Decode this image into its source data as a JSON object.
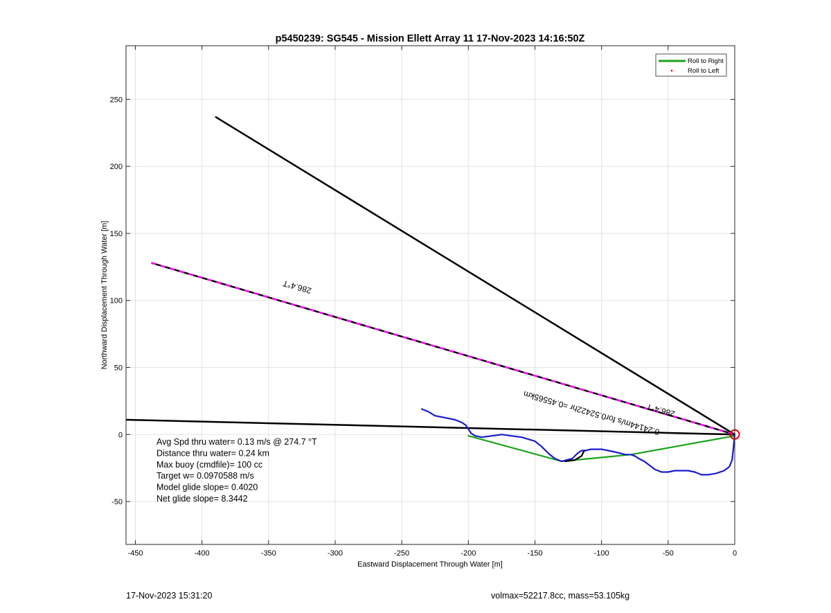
{
  "chart_data": {
    "type": "line",
    "title": "p5450239: SG545 - Mission Ellett Array 11 17-Nov-2023 14:16:50Z",
    "xlabel": "Eastward Displacement Through Water [m]",
    "ylabel": "Northward Displacement Through Water [m]",
    "xlim": [
      -457,
      0
    ],
    "ylim": [
      -82,
      290
    ],
    "xticks": [
      -450,
      -400,
      -350,
      -300,
      -250,
      -200,
      -150,
      -100,
      -50,
      0
    ],
    "yticks": [
      -50,
      0,
      50,
      100,
      150,
      200,
      250
    ],
    "grid": true,
    "legend_position": "top-right",
    "legend": [
      {
        "label": "Roll to Right",
        "color": "#1aa31a",
        "style": "line"
      },
      {
        "label": "Roll to Left",
        "color": "#ff0000",
        "style": "dot"
      }
    ],
    "series": [
      {
        "name": "Roll to Right",
        "color": "#1aa31a",
        "x": [
          -200,
          -130,
          -78,
          0
        ],
        "y": [
          -1,
          -20,
          -15,
          -1
        ]
      },
      {
        "color": "#1a1acc",
        "x": [
          -235,
          -230,
          -225,
          -220,
          -215,
          -210,
          -205,
          -202,
          -200,
          -198,
          -195,
          -190,
          -182,
          -175,
          -168,
          -160,
          -150,
          -145,
          -140,
          -135,
          -130,
          -126,
          -122,
          -118,
          -115,
          -112,
          -108,
          -104,
          -100,
          -95,
          -90,
          -86,
          -82,
          -78,
          -75,
          -72,
          -68,
          -64,
          -60,
          -55,
          -50,
          -45,
          -40,
          -35,
          -30,
          -25,
          -20,
          -14,
          -8,
          -4,
          -2,
          -1,
          0
        ],
        "y": [
          19,
          17,
          14,
          13,
          12,
          11,
          9,
          7,
          4,
          1,
          -1,
          -2,
          -1,
          0,
          -1,
          -2,
          -5,
          -9,
          -14,
          -18,
          -20,
          -19,
          -18,
          -14,
          -12,
          -12,
          -11,
          -11,
          -11,
          -12,
          -13,
          -14,
          -15,
          -15,
          -16,
          -18,
          -20,
          -23,
          -26,
          -28,
          -28,
          -27,
          -27,
          -27,
          -28,
          -30,
          -30,
          -29,
          -27,
          -24,
          -19,
          -10,
          0
        ]
      },
      {
        "color": "#000000",
        "x": [
          -127,
          -120,
          -115,
          -113
        ],
        "y": [
          -20,
          -19,
          -16,
          -12
        ]
      }
    ],
    "reference_lines": [
      {
        "color": "#000000",
        "style": "solid",
        "x": [
          -390,
          0
        ],
        "y": [
          237,
          0
        ]
      },
      {
        "color": "#000000",
        "style": "solid",
        "x": [
          -457,
          0
        ],
        "y": [
          11,
          0
        ]
      },
      {
        "color": "#000000",
        "style": "dashed-magenta",
        "alt_color": "#ff00ff",
        "x": [
          -438,
          0
        ],
        "y": [
          128,
          0
        ]
      }
    ],
    "marker": {
      "x": 0,
      "y": 0,
      "color": "#e00000",
      "shape": "circle"
    },
    "annotations": [
      {
        "text": "286.4°T",
        "x": -328,
        "y": 112,
        "rotate": 196
      },
      {
        "text": "286.4°T",
        "x": -55,
        "y": 20,
        "rotate": 196
      },
      {
        "text": "0.24144m/s for0.52422hr =0.45565km",
        "x": -107,
        "y": 18,
        "rotate": 196
      }
    ],
    "stats_text": [
      "Avg Spd thru water=  0.13 m/s @ 274.7 °T",
      "Distance thru water=  0.24 km",
      "Max buoy (cmdfile)= 100 cc",
      "Target w= 0.0970588 m/s",
      "Model glide slope= 0.4020",
      "Net glide slope= 8.3442"
    ]
  },
  "footer": {
    "timestamp": "17-Nov-2023 15:31:20",
    "info": "volmax=52217.8cc, mass=53.105kg"
  }
}
